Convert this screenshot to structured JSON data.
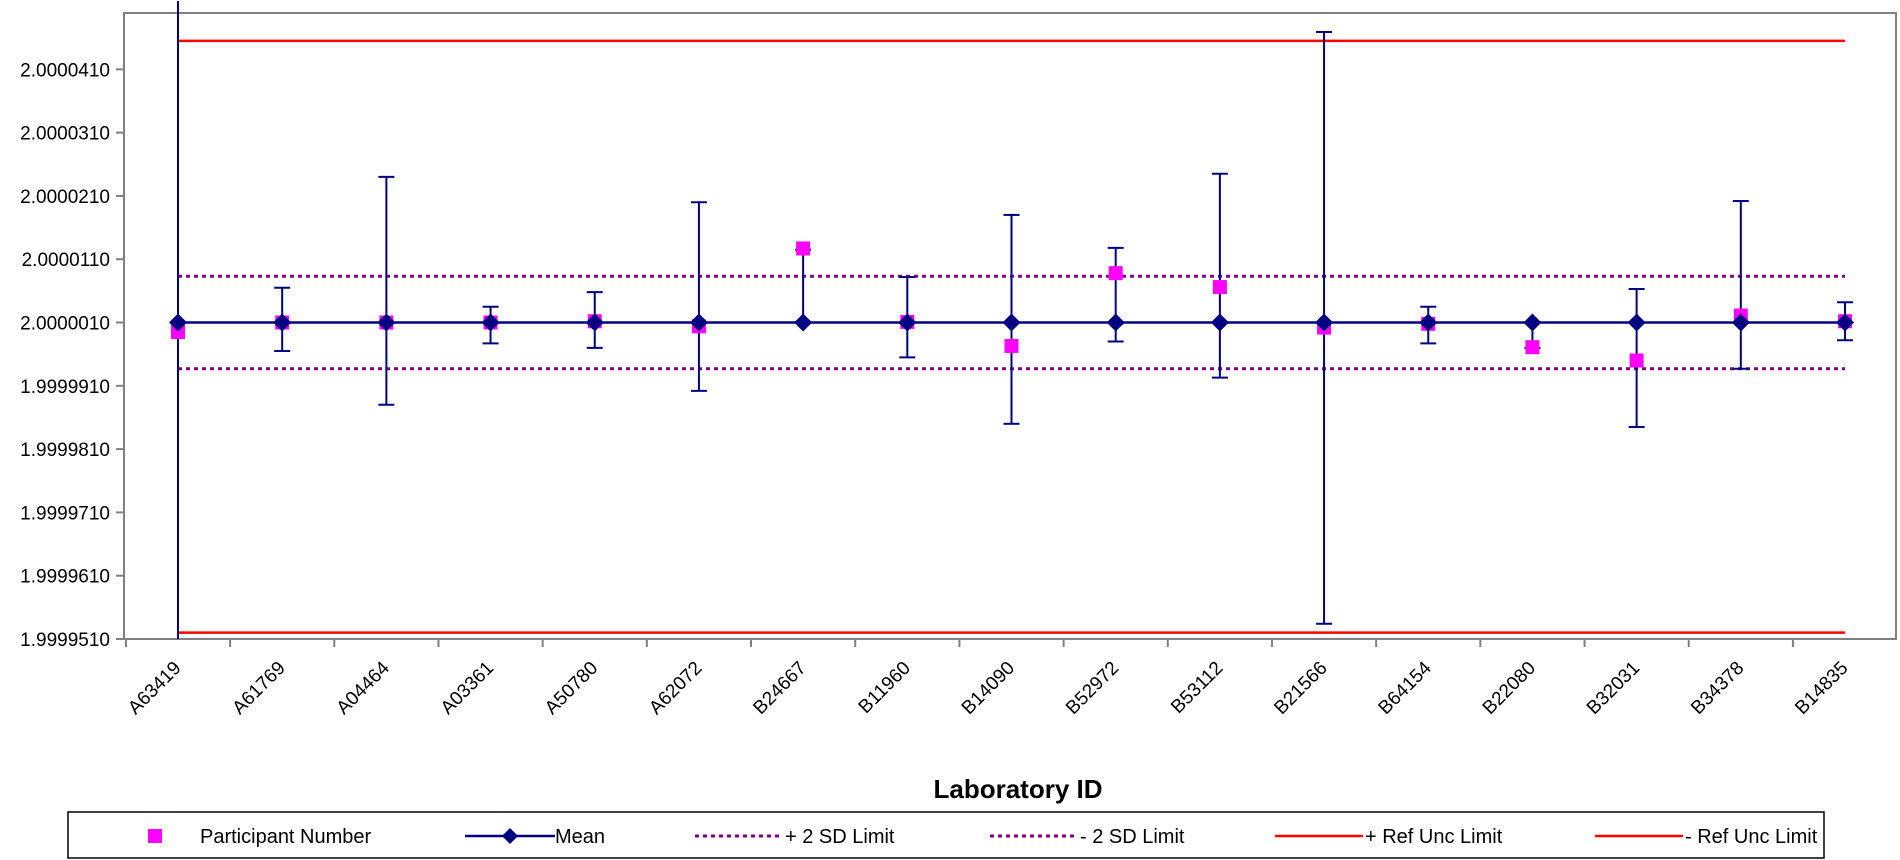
{
  "chart_data": {
    "type": "scatter",
    "title": "",
    "xlabel": "Laboratory ID",
    "ylabel": "",
    "categories": [
      "A63419",
      "A61769",
      "A04464",
      "A03361",
      "A50780",
      "A62072",
      "B24667",
      "B11960",
      "B14090",
      "B52972",
      "B53112",
      "B21566",
      "B64154",
      "B22080",
      "B32031",
      "B34378",
      "B14835"
    ],
    "yticks": [
      "1.9999510",
      "1.9999610",
      "1.9999710",
      "1.9999810",
      "1.9999910",
      "2.0000010",
      "2.0000110",
      "2.0000210",
      "2.0000310",
      "2.0000410"
    ],
    "ylim": [
      1.999951,
      2.0000499
    ],
    "grid": false,
    "legend_position": "bottom",
    "series": [
      {
        "name": "Participant Number",
        "kind": "marker-square",
        "color": "#FF00FF",
        "values": [
          1.9999995,
          2.000001,
          2.000001,
          2.000001,
          2.0000012,
          2.0000004,
          2.0000127,
          2.0000011,
          1.9999973,
          2.0000088,
          2.0000066,
          2.0000002,
          2.0000008,
          1.9999971,
          1.999995,
          2.0000021,
          2.0000012
        ]
      },
      {
        "name": "Mean",
        "kind": "line-diamond",
        "color": "#000080",
        "values": [
          2.000001,
          2.000001,
          2.000001,
          2.000001,
          2.000001,
          2.000001,
          2.000001,
          2.000001,
          2.000001,
          2.000001,
          2.000001,
          2.000001,
          2.000001,
          2.000001,
          2.000001,
          2.000001,
          2.000001
        ],
        "error_plus": [
          6.6e-05,
          5.5e-06,
          2.3e-05,
          2.5e-06,
          4.8e-06,
          1.9e-05,
          1.15e-05,
          7.2e-06,
          1.7e-05,
          1.18e-05,
          2.35e-05,
          4.59e-05,
          2.5e-06,
          0.0,
          5.3e-06,
          1.92e-05,
          3.2e-06
        ],
        "error_minus": [
          6.6e-05,
          4.5e-06,
          1.3e-05,
          3.3e-06,
          4e-06,
          1.08e-05,
          0.0,
          5.5e-06,
          1.6e-05,
          3e-06,
          8.7e-06,
          4.76e-05,
          3.3e-06,
          4e-06,
          1.65e-05,
          7.3e-06,
          2.8e-06
        ]
      },
      {
        "name": "+ 2 SD Limit",
        "kind": "hline-dotted",
        "color": "#800080",
        "value": 2.0000083
      },
      {
        "name": "- 2 SD Limit",
        "kind": "hline-dotted",
        "color": "#800080",
        "value": 1.9999937
      },
      {
        "name": "+ Ref Unc Limit",
        "kind": "hline",
        "color": "#FF0000",
        "value": 2.0000455
      },
      {
        "name": "- Ref Unc Limit",
        "kind": "hline",
        "color": "#FF0000",
        "value": 1.999952
      }
    ]
  }
}
